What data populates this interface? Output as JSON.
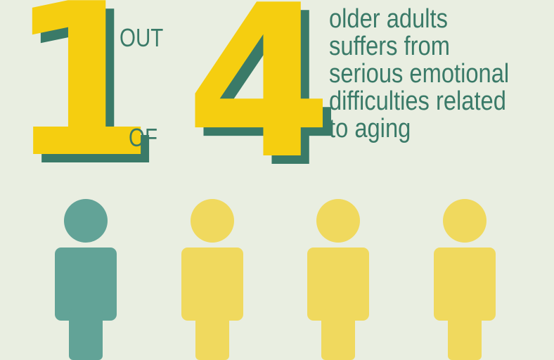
{
  "ratio": {
    "numerator": "1",
    "denominator": "4",
    "word_out": "OUT",
    "word_of": "OF"
  },
  "statement_lines": [
    "older adults",
    "suffers from",
    "serious emotional",
    "difficulties related",
    "to aging"
  ],
  "people": {
    "total": 4,
    "highlighted": 1,
    "icon": "person-icon",
    "highlight_color": "#62a397",
    "default_color": "#f0d95e"
  },
  "colors": {
    "background": "#e9eee1",
    "number_face": "#f5ce10",
    "number_shadow": "#3a7a68",
    "text": "#3a7a68"
  }
}
